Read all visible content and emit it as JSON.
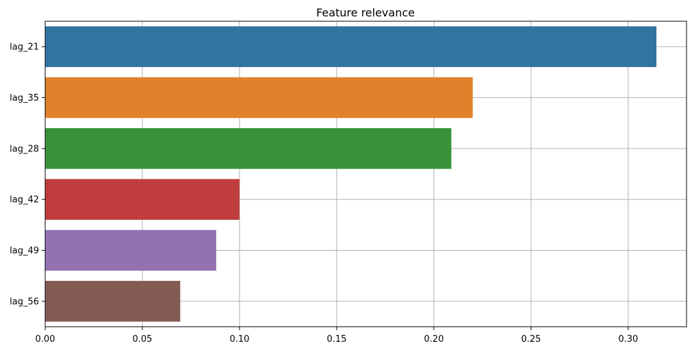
{
  "chart_data": {
    "type": "bar",
    "orientation": "horizontal",
    "title": "Feature relevance",
    "xlabel": "",
    "ylabel": "",
    "categories": [
      "lag_21",
      "lag_35",
      "lag_28",
      "lag_42",
      "lag_49",
      "lag_56"
    ],
    "values": [
      0.3145,
      0.22,
      0.209,
      0.1,
      0.088,
      0.0695
    ],
    "colors": [
      "#3274a1",
      "#e1812c",
      "#3a923a",
      "#c03d3e",
      "#9372b2",
      "#845b53"
    ],
    "xlim": [
      0,
      0.33
    ],
    "xticks": [
      0.0,
      0.05,
      0.1,
      0.15,
      0.2,
      0.25,
      0.3
    ],
    "xtick_labels": [
      "0.00",
      "0.05",
      "0.10",
      "0.15",
      "0.20",
      "0.25",
      "0.30"
    ],
    "grid": true,
    "legend": false
  }
}
